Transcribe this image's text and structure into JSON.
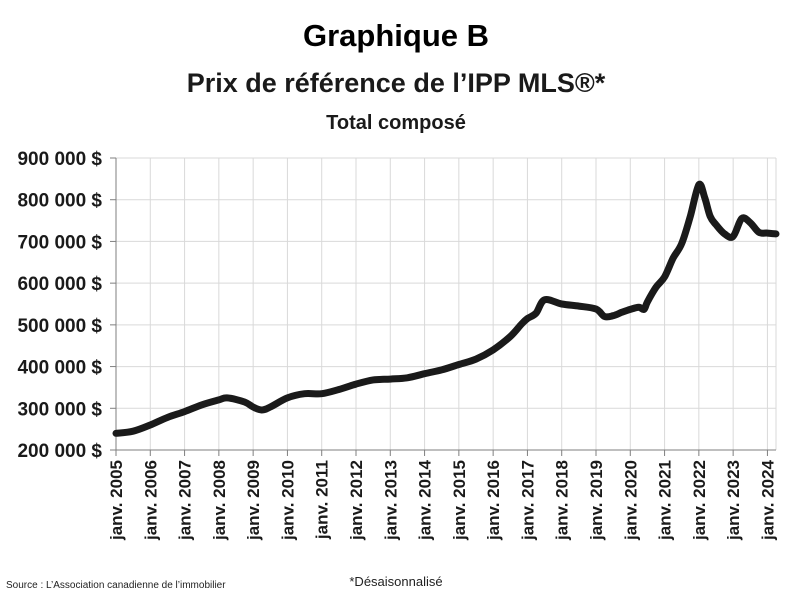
{
  "header": {
    "title": "Graphique B",
    "subtitle": "Prix de référence de l’IPP MLS®*",
    "subtitle2": "Total composé"
  },
  "footer": {
    "source": "Source : L’Association canadienne de l’immobilier",
    "note": "*Désaisonnalisé"
  },
  "chart_data": {
    "type": "line",
    "title": "Graphique B",
    "xlabel": "",
    "ylabel": "",
    "ylim": [
      200000,
      900000
    ],
    "yticks": [
      200000,
      300000,
      400000,
      500000,
      600000,
      700000,
      800000,
      900000
    ],
    "ytick_labels": [
      "200 000 $",
      "300 000 $",
      "400 000 $",
      "500 000 $",
      "600 000 $",
      "700 000 $",
      "800 000 $",
      "900 000 $"
    ],
    "xlim": [
      2005.0,
      2024.25
    ],
    "xticks": [
      2005,
      2006,
      2007,
      2008,
      2009,
      2010,
      2011,
      2012,
      2013,
      2014,
      2015,
      2016,
      2017,
      2018,
      2019,
      2020,
      2021,
      2022,
      2023,
      2024
    ],
    "xtick_labels": [
      "janv. 2005",
      "janv. 2006",
      "janv. 2007",
      "janv. 2008",
      "janv. 2009",
      "janv. 2010",
      "janv. 2011",
      "janv. 2012",
      "janv. 2013",
      "janv. 2014",
      "janv. 2015",
      "janv. 2016",
      "janv. 2017",
      "janv. 2018",
      "janv. 2019",
      "janv. 2020",
      "janv. 2021",
      "janv. 2022",
      "janv. 2023",
      "janv. 2024"
    ],
    "grid": true,
    "line_color": "#1a1a1a",
    "grid_color": "#d9d9d9",
    "series": [
      {
        "x": [
          2005.0,
          2005.5,
          2006.0,
          2006.5,
          2007.0,
          2007.5,
          2008.0,
          2008.25,
          2008.75,
          2009.0,
          2009.25,
          2009.5,
          2010.0,
          2010.5,
          2011.0,
          2011.5,
          2012.0,
          2012.5,
          2013.0,
          2013.5,
          2014.0,
          2014.5,
          2015.0,
          2015.5,
          2016.0,
          2016.5,
          2016.83,
          2017.0,
          2017.25,
          2017.5,
          2018.0,
          2018.5,
          2019.0,
          2019.25,
          2019.5,
          2019.75,
          2020.0,
          2020.25,
          2020.4,
          2020.5,
          2020.75,
          2021.0,
          2021.25,
          2021.5,
          2021.75,
          2022.0,
          2022.17,
          2022.33,
          2022.5,
          2022.75,
          2023.0,
          2023.25,
          2023.5,
          2023.75,
          2024.0,
          2024.25
        ],
        "y": [
          240000,
          245000,
          260000,
          278000,
          292000,
          308000,
          320000,
          325000,
          315000,
          303000,
          296000,
          303000,
          325000,
          335000,
          335000,
          345000,
          358000,
          368000,
          370000,
          373000,
          383000,
          392000,
          405000,
          418000,
          440000,
          472000,
          502000,
          515000,
          528000,
          560000,
          550000,
          545000,
          538000,
          520000,
          522000,
          530000,
          537000,
          542000,
          537000,
          555000,
          590000,
          615000,
          660000,
          695000,
          760000,
          836000,
          805000,
          760000,
          740000,
          718000,
          712000,
          755000,
          745000,
          722000,
          720000,
          718000
        ]
      }
    ]
  }
}
